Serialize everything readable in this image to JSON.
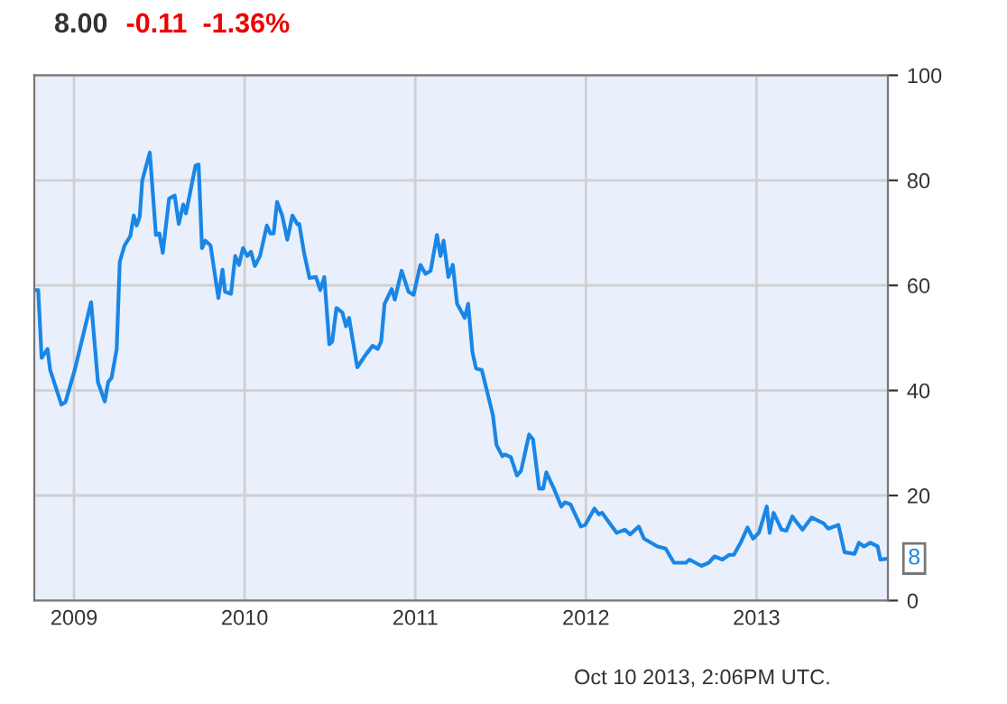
{
  "chart_data": {
    "type": "line",
    "title": "8.00",
    "subtitle": "-0.11  -1.36%",
    "annotations": [
      {
        "text": "8",
        "x": 2013.77,
        "y": 8
      },
      "Oct 10 2013, 2:06PM UTC."
    ],
    "x": [
      2008.767,
      2008.79,
      2008.81,
      2008.845,
      2008.86,
      2008.926,
      2008.95,
      2009.004,
      2009.1,
      2009.14,
      2009.18,
      2009.2,
      2009.22,
      2009.25,
      2009.268,
      2009.296,
      2009.33,
      2009.35,
      2009.367,
      2009.385,
      2009.4,
      2009.444,
      2009.48,
      2009.5,
      2009.52,
      2009.557,
      2009.59,
      2009.614,
      2009.64,
      2009.656,
      2009.712,
      2009.73,
      2009.75,
      2009.77,
      2009.8,
      2009.846,
      2009.87,
      2009.885,
      2009.92,
      2009.945,
      2009.967,
      2009.99,
      2010.016,
      2010.037,
      2010.06,
      2010.09,
      2010.13,
      2010.15,
      2010.17,
      2010.19,
      2010.22,
      2010.25,
      2010.28,
      2010.31,
      2010.32,
      2010.347,
      2010.38,
      2010.418,
      2010.443,
      2010.467,
      2010.496,
      2010.513,
      2010.538,
      2010.573,
      2010.594,
      2010.612,
      2010.66,
      2010.707,
      2010.75,
      2010.78,
      2010.8,
      2010.82,
      2010.862,
      2010.88,
      2010.92,
      2010.96,
      2010.99,
      2011.03,
      2011.06,
      2011.09,
      2011.127,
      2011.148,
      2011.166,
      2011.194,
      2011.22,
      2011.245,
      2011.29,
      2011.31,
      2011.335,
      2011.356,
      2011.39,
      2011.455,
      2011.476,
      2011.51,
      2011.526,
      2011.56,
      2011.596,
      2011.62,
      2011.667,
      2011.69,
      2011.726,
      2011.75,
      2011.768,
      2011.81,
      2011.856,
      2011.877,
      2011.91,
      2011.97,
      2011.996,
      2012.05,
      2012.077,
      2012.095,
      2012.18,
      2012.228,
      2012.26,
      2012.31,
      2012.34,
      2012.42,
      2012.467,
      2012.516,
      2012.586,
      2012.607,
      2012.677,
      2012.72,
      2012.754,
      2012.8,
      2012.84,
      2012.867,
      2012.91,
      2012.947,
      2012.98,
      2013.014,
      2013.06,
      2013.077,
      2013.1,
      2013.147,
      2013.175,
      2013.21,
      2013.235,
      2013.27,
      2013.323,
      2013.393,
      2013.42,
      2013.48,
      2013.516,
      2013.575,
      2013.6,
      2013.63,
      2013.667,
      2013.71,
      2013.726,
      2013.77
    ],
    "series": [
      {
        "color": "#1a86e6",
        "values": [
          59.1,
          59.1,
          46.2,
          47.9,
          43.9,
          37.3,
          37.8,
          43.9,
          56.8,
          41.6,
          37.9,
          41.6,
          42.4,
          47.9,
          64.5,
          67.6,
          69.4,
          73.3,
          71.4,
          73.1,
          80.0,
          85.3,
          69.6,
          69.9,
          66.2,
          76.5,
          77.1,
          71.7,
          75.4,
          73.7,
          82.8,
          83.0,
          67.1,
          68.5,
          67.6,
          57.6,
          63.0,
          58.8,
          58.4,
          65.6,
          63.9,
          67.1,
          65.6,
          66.4,
          63.7,
          65.6,
          71.4,
          69.9,
          69.9,
          75.9,
          73.3,
          68.7,
          73.3,
          71.6,
          71.7,
          66.4,
          61.4,
          61.6,
          59.1,
          61.6,
          48.8,
          49.3,
          55.7,
          54.8,
          52.2,
          53.8,
          44.4,
          46.7,
          48.5,
          47.9,
          49.3,
          56.5,
          59.3,
          57.3,
          62.8,
          58.8,
          58.2,
          63.9,
          62.2,
          62.8,
          69.6,
          65.6,
          68.5,
          61.6,
          63.9,
          56.5,
          53.8,
          56.5,
          47.3,
          44.2,
          43.9,
          35.3,
          29.6,
          27.5,
          27.8,
          27.3,
          23.8,
          24.7,
          31.6,
          30.7,
          21.3,
          21.3,
          24.4,
          21.5,
          17.9,
          18.7,
          18.3,
          14.1,
          14.4,
          17.5,
          16.4,
          16.7,
          12.9,
          13.5,
          12.6,
          14.1,
          11.8,
          10.3,
          9.9,
          7.2,
          7.2,
          7.8,
          6.6,
          7.2,
          8.4,
          7.8,
          8.7,
          8.7,
          11.2,
          13.9,
          11.8,
          12.9,
          17.9,
          12.9,
          16.7,
          13.5,
          13.3,
          16.0,
          14.9,
          13.5,
          15.8,
          14.7,
          13.7,
          14.4,
          9.2,
          8.9,
          11.0,
          10.3,
          11.0,
          10.3,
          7.8,
          8.0
        ]
      }
    ],
    "xlim": [
      2008.767,
      2013.77
    ],
    "xticks": [
      2009,
      2010,
      2011,
      2012,
      2013
    ],
    "ylim": [
      0,
      100
    ],
    "yticks": [
      0,
      20,
      40,
      60,
      80,
      100
    ],
    "grid": true,
    "legend": false,
    "marker": "none",
    "line_style": "solid"
  }
}
